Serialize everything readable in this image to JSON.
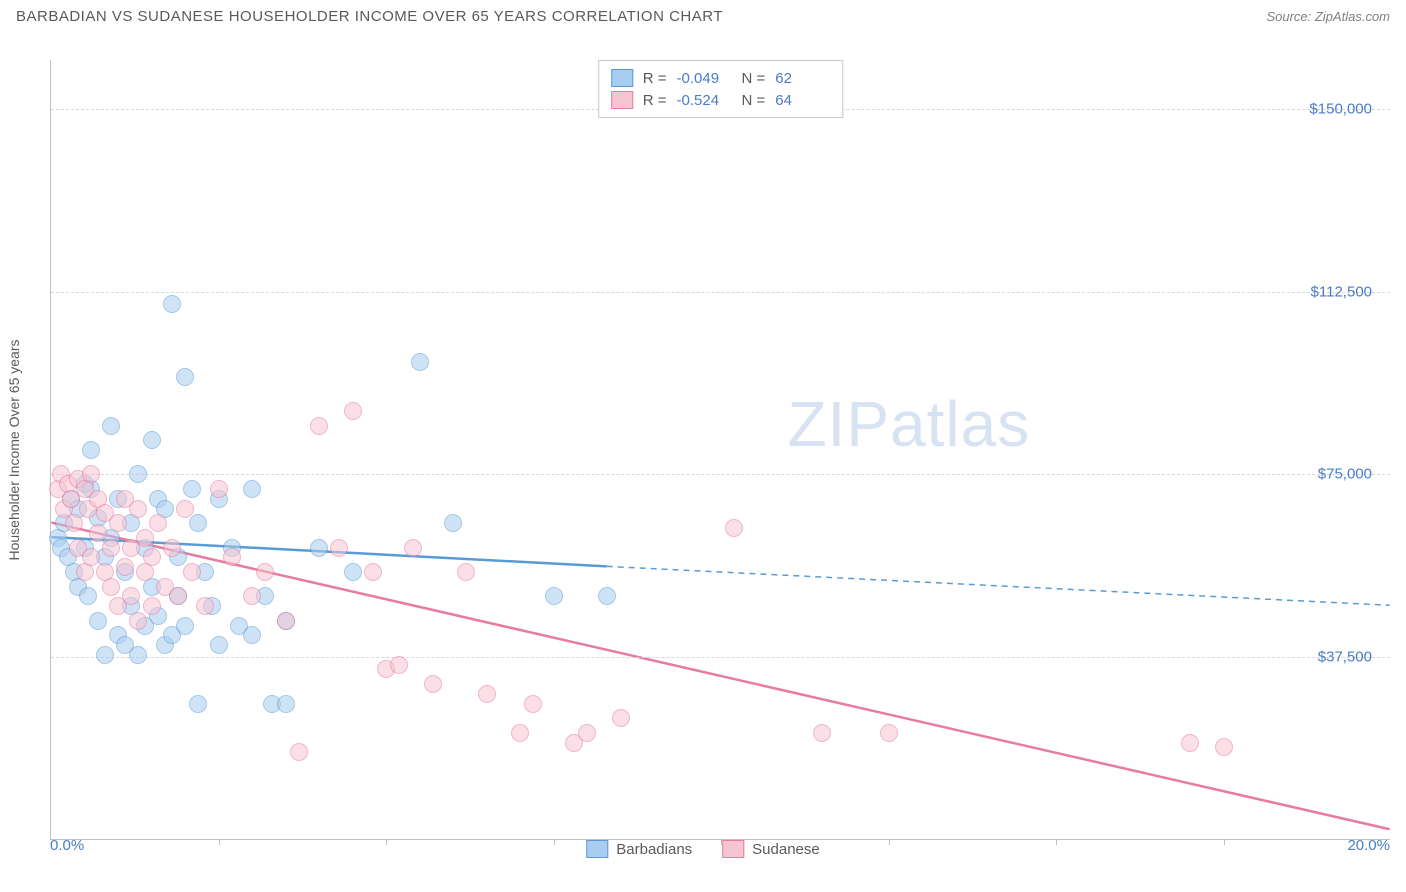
{
  "title": "BARBADIAN VS SUDANESE HOUSEHOLDER INCOME OVER 65 YEARS CORRELATION CHART",
  "source": "Source: ZipAtlas.com",
  "watermark_zip": "ZIP",
  "watermark_atlas": "atlas",
  "chart": {
    "type": "scatter",
    "ylabel": "Householder Income Over 65 years",
    "xlim": [
      0,
      20
    ],
    "ylim": [
      0,
      160000
    ],
    "yticks": [
      {
        "v": 37500,
        "label": "$37,500"
      },
      {
        "v": 75000,
        "label": "$75,000"
      },
      {
        "v": 112500,
        "label": "$112,500"
      },
      {
        "v": 150000,
        "label": "$150,000"
      }
    ],
    "xticks_minor": [
      2.5,
      5,
      7.5,
      10,
      12.5,
      15,
      17.5
    ],
    "xtick_labels": [
      {
        "v": 0,
        "label": "0.0%",
        "align": "left"
      },
      {
        "v": 20,
        "label": "20.0%",
        "align": "right"
      }
    ],
    "grid_color": "#d8d8d8",
    "background_color": "#ffffff",
    "point_radius": 9,
    "point_opacity": 0.55,
    "series": [
      {
        "name": "Barbadians",
        "fill": "#a9cdf0",
        "stroke": "#5b9bd5",
        "r_label": "R =",
        "r_value": "-0.049",
        "n_label": "N =",
        "n_value": "62",
        "trend": {
          "x1": 0,
          "y1": 62000,
          "x2": 8.3,
          "y2": 56000,
          "x2_ext": 20,
          "y2_ext": 48000
        },
        "points": [
          [
            0.1,
            62000
          ],
          [
            0.15,
            60000
          ],
          [
            0.2,
            65000
          ],
          [
            0.25,
            58000
          ],
          [
            0.3,
            70000
          ],
          [
            0.35,
            55000
          ],
          [
            0.4,
            68000
          ],
          [
            0.4,
            52000
          ],
          [
            0.5,
            73000
          ],
          [
            0.5,
            60000
          ],
          [
            0.55,
            50000
          ],
          [
            0.6,
            72000
          ],
          [
            0.6,
            80000
          ],
          [
            0.7,
            66000
          ],
          [
            0.7,
            45000
          ],
          [
            0.8,
            58000
          ],
          [
            0.8,
            38000
          ],
          [
            0.9,
            62000
          ],
          [
            0.9,
            85000
          ],
          [
            1.0,
            70000
          ],
          [
            1.0,
            42000
          ],
          [
            1.1,
            55000
          ],
          [
            1.1,
            40000
          ],
          [
            1.2,
            65000
          ],
          [
            1.2,
            48000
          ],
          [
            1.3,
            75000
          ],
          [
            1.3,
            38000
          ],
          [
            1.4,
            60000
          ],
          [
            1.4,
            44000
          ],
          [
            1.5,
            82000
          ],
          [
            1.5,
            52000
          ],
          [
            1.6,
            70000
          ],
          [
            1.6,
            46000
          ],
          [
            1.7,
            68000
          ],
          [
            1.7,
            40000
          ],
          [
            1.8,
            110000
          ],
          [
            1.8,
            42000
          ],
          [
            1.9,
            58000
          ],
          [
            1.9,
            50000
          ],
          [
            2.0,
            95000
          ],
          [
            2.0,
            44000
          ],
          [
            2.1,
            72000
          ],
          [
            2.2,
            65000
          ],
          [
            2.2,
            28000
          ],
          [
            2.3,
            55000
          ],
          [
            2.4,
            48000
          ],
          [
            2.5,
            70000
          ],
          [
            2.5,
            40000
          ],
          [
            2.7,
            60000
          ],
          [
            2.8,
            44000
          ],
          [
            3.0,
            72000
          ],
          [
            3.0,
            42000
          ],
          [
            3.2,
            50000
          ],
          [
            3.3,
            28000
          ],
          [
            3.5,
            45000
          ],
          [
            3.5,
            28000
          ],
          [
            4.0,
            60000
          ],
          [
            4.5,
            55000
          ],
          [
            5.5,
            98000
          ],
          [
            6.0,
            65000
          ],
          [
            7.5,
            50000
          ],
          [
            8.3,
            50000
          ]
        ]
      },
      {
        "name": "Sudanese",
        "fill": "#f6c5d2",
        "stroke": "#e87ba0",
        "r_label": "R =",
        "r_value": "-0.524",
        "n_label": "N =",
        "n_value": "64",
        "trend": {
          "x1": 0,
          "y1": 65000,
          "x2": 20,
          "y2": 2000,
          "x2_ext": 20,
          "y2_ext": 2000
        },
        "points": [
          [
            0.1,
            72000
          ],
          [
            0.15,
            75000
          ],
          [
            0.2,
            68000
          ],
          [
            0.25,
            73000
          ],
          [
            0.3,
            70000
          ],
          [
            0.35,
            65000
          ],
          [
            0.4,
            74000
          ],
          [
            0.4,
            60000
          ],
          [
            0.5,
            72000
          ],
          [
            0.5,
            55000
          ],
          [
            0.55,
            68000
          ],
          [
            0.6,
            58000
          ],
          [
            0.6,
            75000
          ],
          [
            0.7,
            63000
          ],
          [
            0.7,
            70000
          ],
          [
            0.8,
            55000
          ],
          [
            0.8,
            67000
          ],
          [
            0.9,
            60000
          ],
          [
            0.9,
            52000
          ],
          [
            1.0,
            65000
          ],
          [
            1.0,
            48000
          ],
          [
            1.1,
            70000
          ],
          [
            1.1,
            56000
          ],
          [
            1.2,
            60000
          ],
          [
            1.2,
            50000
          ],
          [
            1.3,
            68000
          ],
          [
            1.3,
            45000
          ],
          [
            1.4,
            62000
          ],
          [
            1.4,
            55000
          ],
          [
            1.5,
            58000
          ],
          [
            1.5,
            48000
          ],
          [
            1.6,
            65000
          ],
          [
            1.7,
            52000
          ],
          [
            1.8,
            60000
          ],
          [
            1.9,
            50000
          ],
          [
            2.0,
            68000
          ],
          [
            2.1,
            55000
          ],
          [
            2.3,
            48000
          ],
          [
            2.5,
            72000
          ],
          [
            2.7,
            58000
          ],
          [
            3.0,
            50000
          ],
          [
            3.2,
            55000
          ],
          [
            3.5,
            45000
          ],
          [
            3.7,
            18000
          ],
          [
            4.0,
            85000
          ],
          [
            4.3,
            60000
          ],
          [
            4.5,
            88000
          ],
          [
            4.8,
            55000
          ],
          [
            5.0,
            35000
          ],
          [
            5.2,
            36000
          ],
          [
            5.4,
            60000
          ],
          [
            5.7,
            32000
          ],
          [
            6.2,
            55000
          ],
          [
            6.5,
            30000
          ],
          [
            7.0,
            22000
          ],
          [
            7.2,
            28000
          ],
          [
            7.8,
            20000
          ],
          [
            8.0,
            22000
          ],
          [
            8.5,
            25000
          ],
          [
            10.2,
            64000
          ],
          [
            11.5,
            22000
          ],
          [
            12.5,
            22000
          ],
          [
            17.0,
            20000
          ],
          [
            17.5,
            19000
          ]
        ]
      }
    ]
  }
}
